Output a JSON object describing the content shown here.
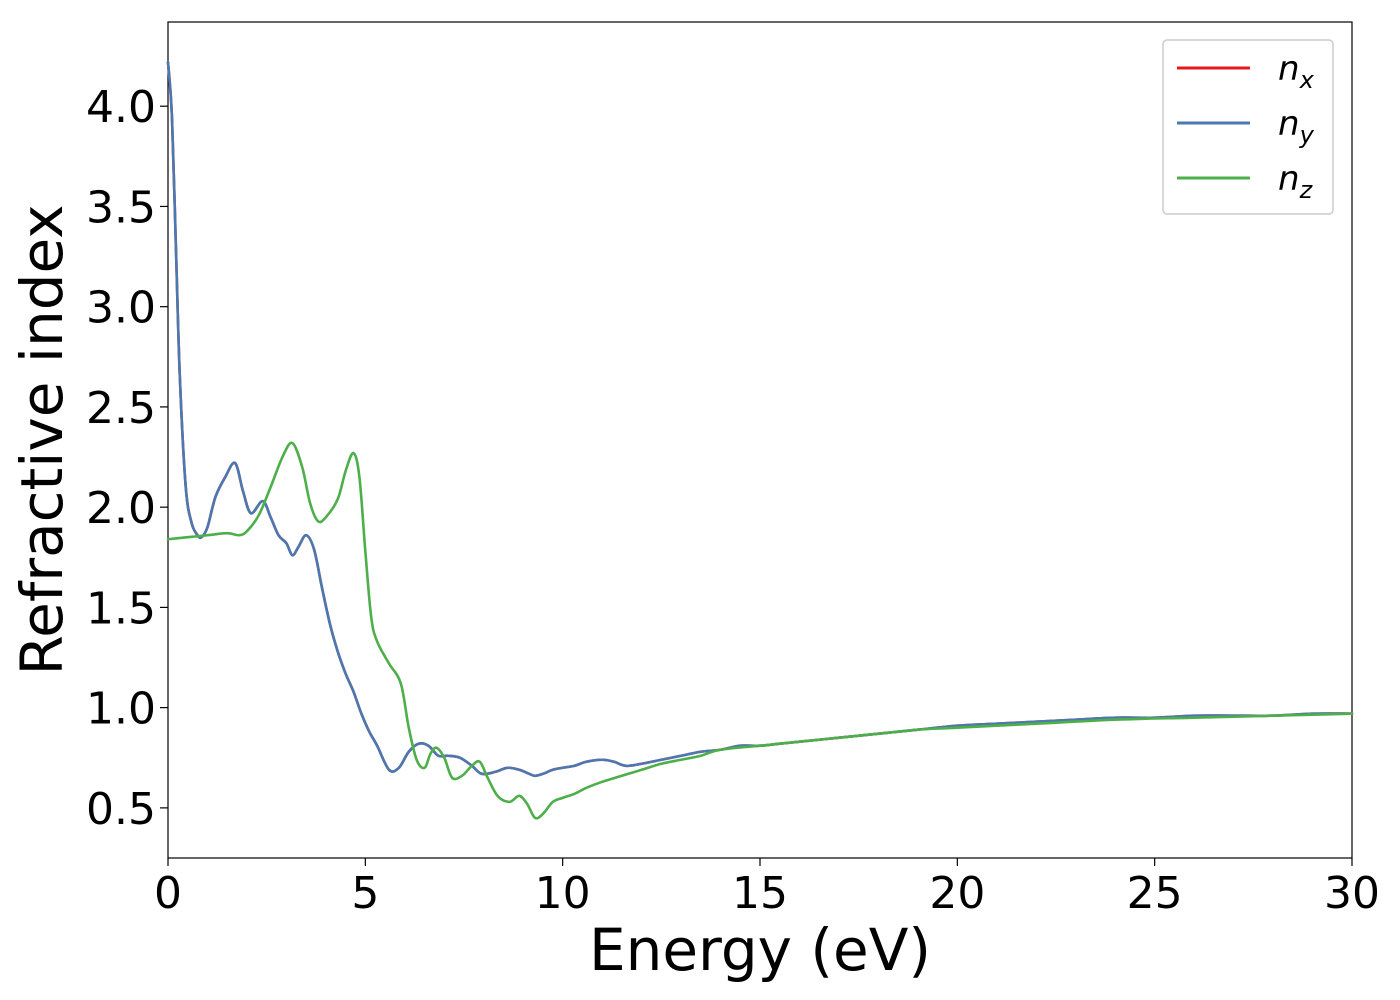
{
  "chart_data": {
    "type": "line",
    "title": "",
    "xlabel": "Energy (eV)",
    "ylabel": "Refractive index",
    "xlim": [
      0,
      30
    ],
    "ylim": [
      0.25,
      4.42
    ],
    "xticks": [
      0,
      5,
      10,
      15,
      20,
      25,
      30
    ],
    "xtick_labels": [
      "0",
      "5",
      "10",
      "15",
      "20",
      "25",
      "30"
    ],
    "yticks": [
      0.5,
      1.0,
      1.5,
      2.0,
      2.5,
      3.0,
      3.5,
      4.0
    ],
    "ytick_labels": [
      "0.5",
      "1.0",
      "1.5",
      "2.0",
      "2.5",
      "3.0",
      "3.5",
      "4.0"
    ],
    "grid": false,
    "legend_position": "top-right",
    "series": [
      {
        "name": "n_x",
        "label_base": "n",
        "label_sub": "x",
        "color": "#e41a1c",
        "x": [
          0,
          0.1,
          0.2,
          0.3,
          0.45,
          0.6,
          0.75,
          0.85,
          1.0,
          1.2,
          1.45,
          1.7,
          1.9,
          2.1,
          2.4,
          2.6,
          2.8,
          3.0,
          3.15,
          3.3,
          3.5,
          3.7,
          3.9,
          4.1,
          4.3,
          4.5,
          4.7,
          4.9,
          5.1,
          5.3,
          5.6,
          5.85,
          6.1,
          6.35,
          6.6,
          6.85,
          7.1,
          7.4,
          7.7,
          7.95,
          8.3,
          8.6,
          8.9,
          9.15,
          9.3,
          9.5,
          9.75,
          10.0,
          10.3,
          10.6,
          11.0,
          11.3,
          11.6,
          12.0,
          12.5,
          13.0,
          13.5,
          14.0,
          14.5,
          15.0,
          15.5,
          16.0,
          17.0,
          18.0,
          19.0,
          20.0,
          21.0,
          22.0,
          23.0,
          24.0,
          25.0,
          26.0,
          27.0,
          28.0,
          29.0,
          30.0
        ],
        "y": [
          4.22,
          3.95,
          3.3,
          2.65,
          2.1,
          1.92,
          1.86,
          1.85,
          1.9,
          2.05,
          2.15,
          2.22,
          2.08,
          1.97,
          2.03,
          1.95,
          1.86,
          1.82,
          1.76,
          1.8,
          1.86,
          1.79,
          1.6,
          1.42,
          1.28,
          1.17,
          1.08,
          0.97,
          0.88,
          0.81,
          0.69,
          0.7,
          0.78,
          0.82,
          0.81,
          0.76,
          0.76,
          0.75,
          0.71,
          0.67,
          0.68,
          0.7,
          0.69,
          0.67,
          0.66,
          0.67,
          0.69,
          0.7,
          0.71,
          0.73,
          0.74,
          0.73,
          0.71,
          0.72,
          0.74,
          0.76,
          0.78,
          0.79,
          0.81,
          0.81,
          0.82,
          0.83,
          0.85,
          0.87,
          0.89,
          0.91,
          0.92,
          0.93,
          0.94,
          0.95,
          0.95,
          0.96,
          0.96,
          0.96,
          0.97,
          0.97
        ]
      },
      {
        "name": "n_y",
        "label_base": "n",
        "label_sub": "y",
        "color": "#4a79b2",
        "x": [
          0,
          0.1,
          0.2,
          0.3,
          0.45,
          0.6,
          0.75,
          0.85,
          1.0,
          1.2,
          1.45,
          1.7,
          1.9,
          2.1,
          2.4,
          2.6,
          2.8,
          3.0,
          3.15,
          3.3,
          3.5,
          3.7,
          3.9,
          4.1,
          4.3,
          4.5,
          4.7,
          4.9,
          5.1,
          5.3,
          5.6,
          5.85,
          6.1,
          6.35,
          6.6,
          6.85,
          7.1,
          7.4,
          7.7,
          7.95,
          8.3,
          8.6,
          8.9,
          9.15,
          9.3,
          9.5,
          9.75,
          10.0,
          10.3,
          10.6,
          11.0,
          11.3,
          11.6,
          12.0,
          12.5,
          13.0,
          13.5,
          14.0,
          14.5,
          15.0,
          15.5,
          16.0,
          17.0,
          18.0,
          19.0,
          20.0,
          21.0,
          22.0,
          23.0,
          24.0,
          25.0,
          26.0,
          27.0,
          28.0,
          29.0,
          30.0
        ],
        "y": [
          4.22,
          3.95,
          3.3,
          2.65,
          2.1,
          1.92,
          1.86,
          1.85,
          1.9,
          2.05,
          2.15,
          2.22,
          2.08,
          1.97,
          2.03,
          1.95,
          1.86,
          1.82,
          1.76,
          1.8,
          1.86,
          1.79,
          1.6,
          1.42,
          1.28,
          1.17,
          1.08,
          0.97,
          0.88,
          0.81,
          0.69,
          0.7,
          0.78,
          0.82,
          0.81,
          0.76,
          0.76,
          0.75,
          0.71,
          0.67,
          0.68,
          0.7,
          0.69,
          0.67,
          0.66,
          0.67,
          0.69,
          0.7,
          0.71,
          0.73,
          0.74,
          0.73,
          0.71,
          0.72,
          0.74,
          0.76,
          0.78,
          0.79,
          0.81,
          0.81,
          0.82,
          0.83,
          0.85,
          0.87,
          0.89,
          0.91,
          0.92,
          0.93,
          0.94,
          0.95,
          0.95,
          0.96,
          0.96,
          0.96,
          0.97,
          0.97
        ]
      },
      {
        "name": "n_z",
        "label_base": "n",
        "label_sub": "z",
        "color": "#4daf4a",
        "x": [
          0,
          0.5,
          1.0,
          1.5,
          1.8,
          2.0,
          2.3,
          2.6,
          2.9,
          3.15,
          3.4,
          3.6,
          3.8,
          4.0,
          4.3,
          4.5,
          4.7,
          4.85,
          5.0,
          5.15,
          5.3,
          5.6,
          5.9,
          6.1,
          6.3,
          6.5,
          6.65,
          6.8,
          7.0,
          7.2,
          7.45,
          7.7,
          7.9,
          8.1,
          8.35,
          8.65,
          8.9,
          9.1,
          9.3,
          9.5,
          9.75,
          10.0,
          10.3,
          10.6,
          11.0,
          11.5,
          12.0,
          12.5,
          13.0,
          13.5,
          14.0,
          15.0,
          16.0,
          17.0,
          18.0,
          19.0,
          20.0,
          22.0,
          24.0,
          26.0,
          28.0,
          30.0
        ],
        "y": [
          1.84,
          1.85,
          1.86,
          1.87,
          1.86,
          1.88,
          1.96,
          2.1,
          2.25,
          2.32,
          2.2,
          2.02,
          1.93,
          1.95,
          2.04,
          2.18,
          2.27,
          2.15,
          1.78,
          1.45,
          1.33,
          1.22,
          1.12,
          0.9,
          0.74,
          0.7,
          0.77,
          0.8,
          0.75,
          0.65,
          0.66,
          0.71,
          0.73,
          0.65,
          0.56,
          0.53,
          0.56,
          0.52,
          0.45,
          0.47,
          0.53,
          0.55,
          0.57,
          0.6,
          0.63,
          0.66,
          0.69,
          0.72,
          0.74,
          0.76,
          0.79,
          0.81,
          0.83,
          0.85,
          0.87,
          0.89,
          0.9,
          0.92,
          0.94,
          0.95,
          0.96,
          0.97
        ]
      }
    ]
  }
}
